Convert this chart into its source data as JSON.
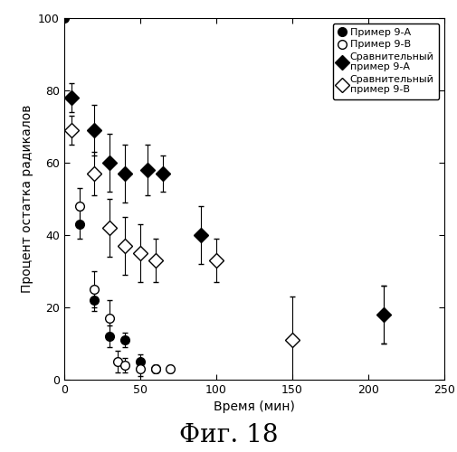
{
  "title_bottom": "Фиг. 18",
  "xlabel": "Время (мин)",
  "ylabel": "Процент остатка радикалов",
  "xlim": [
    0,
    250
  ],
  "ylim": [
    0,
    100
  ],
  "xticks": [
    0,
    50,
    100,
    150,
    200,
    250
  ],
  "yticks": [
    0,
    20,
    40,
    60,
    80,
    100
  ],
  "series_A": {
    "label": "Пример 9-А",
    "x": [
      0,
      10,
      20,
      30,
      40,
      50,
      60,
      210
    ],
    "y": [
      100,
      43,
      22,
      12,
      11,
      5,
      3,
      18
    ],
    "yerr": [
      0,
      4,
      3,
      3,
      2,
      2,
      1,
      8
    ],
    "marker": "o",
    "fillstyle": "full",
    "markersize": 7
  },
  "series_B": {
    "label": "Пример 9-В",
    "x": [
      10,
      20,
      30,
      35,
      40,
      50,
      60,
      70
    ],
    "y": [
      48,
      25,
      17,
      5,
      4,
      3,
      3,
      3
    ],
    "yerr": [
      5,
      5,
      5,
      3,
      2,
      2,
      1,
      1
    ],
    "marker": "o",
    "fillstyle": "none",
    "markersize": 7
  },
  "series_CA": {
    "label": "Сравнительный\nпример 9-А",
    "x": [
      5,
      20,
      30,
      40,
      55,
      65,
      90,
      210
    ],
    "y": [
      78,
      69,
      60,
      57,
      58,
      57,
      40,
      18
    ],
    "yerr": [
      4,
      7,
      8,
      8,
      7,
      5,
      8,
      8
    ],
    "marker": "D",
    "fillstyle": "full",
    "markersize": 8
  },
  "series_CB": {
    "label": "Сравнительный\nпример 9-В",
    "x": [
      5,
      20,
      30,
      40,
      50,
      60,
      100,
      150
    ],
    "y": [
      69,
      57,
      42,
      37,
      35,
      33,
      33,
      11
    ],
    "yerr": [
      4,
      6,
      8,
      8,
      8,
      6,
      6,
      12
    ],
    "marker": "D",
    "fillstyle": "none",
    "markersize": 8
  },
  "background_color": "white",
  "legend_fontsize": 8,
  "axis_fontsize": 10,
  "title_fontsize": 20,
  "capsize": 2,
  "elinewidth": 0.8,
  "linewidth": 0
}
